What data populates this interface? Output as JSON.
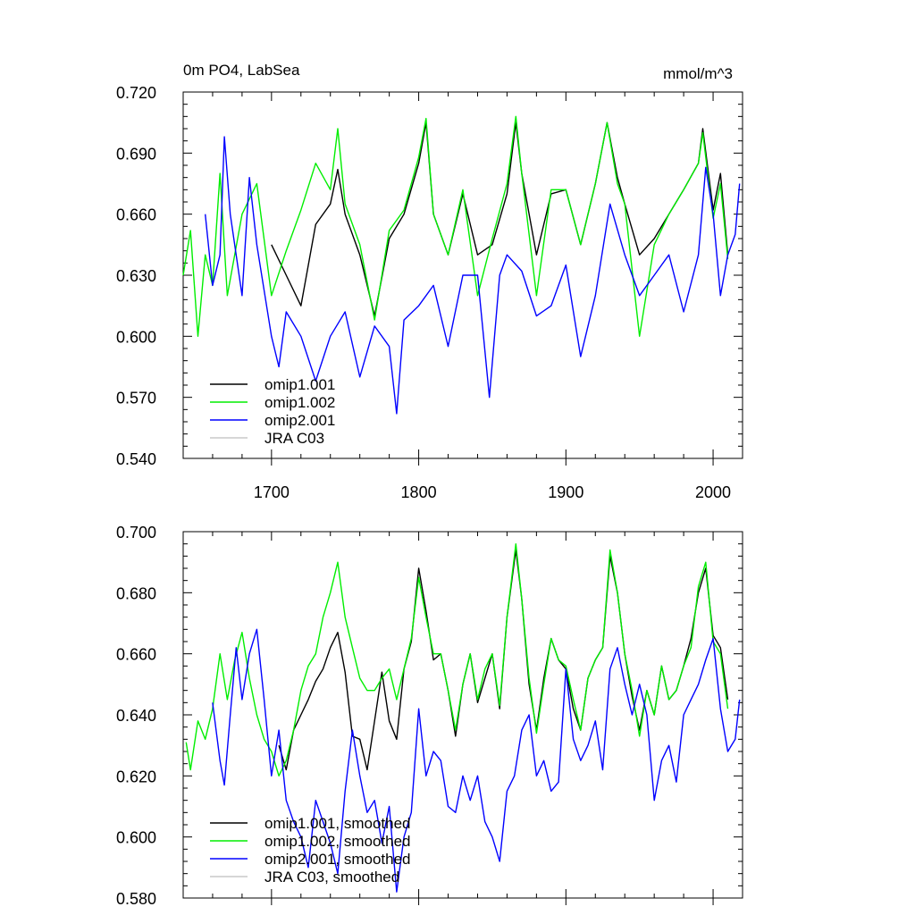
{
  "chart_data": [
    {
      "type": "line",
      "title": "0m PO4, LabSea",
      "units": "mmol/m^3",
      "xlabel": "",
      "ylabel": "",
      "xlim": [
        1640,
        2020
      ],
      "ylim": [
        0.54,
        0.72
      ],
      "x_ticks": [
        1700,
        1800,
        1900,
        2000
      ],
      "x_tick_labels": [
        "1700",
        "1800",
        "1900",
        "2000"
      ],
      "y_ticks": [
        0.54,
        0.57,
        0.6,
        0.63,
        0.66,
        0.69,
        0.72
      ],
      "y_tick_labels": [
        "0.540",
        "0.570",
        "0.600",
        "0.630",
        "0.660",
        "0.690",
        "0.720"
      ],
      "legend_position": "bottom-left",
      "series": [
        {
          "name": "omip1.001",
          "color": "#000000",
          "x": [
            1700,
            1710,
            1720,
            1730,
            1740,
            1745,
            1750,
            1760,
            1770,
            1780,
            1790,
            1800,
            1805,
            1810,
            1820,
            1830,
            1840,
            1850,
            1860,
            1866,
            1870,
            1880,
            1890,
            1900,
            1910,
            1920,
            1928,
            1935,
            1940,
            1950,
            1960,
            1970,
            1980,
            1990,
            1993,
            2000,
            2005,
            2010
          ],
          "values": [
            0.645,
            0.63,
            0.615,
            0.655,
            0.665,
            0.682,
            0.66,
            0.64,
            0.61,
            0.648,
            0.66,
            0.685,
            0.705,
            0.66,
            0.64,
            0.67,
            0.64,
            0.645,
            0.67,
            0.705,
            0.68,
            0.64,
            0.67,
            0.672,
            0.645,
            0.675,
            0.705,
            0.678,
            0.665,
            0.64,
            0.648,
            0.66,
            0.672,
            0.685,
            0.702,
            0.662,
            0.68,
            0.64
          ]
        },
        {
          "name": "omip1.002",
          "color": "#00ee00",
          "x": [
            1640,
            1645,
            1650,
            1655,
            1660,
            1665,
            1670,
            1680,
            1690,
            1700,
            1710,
            1720,
            1730,
            1740,
            1745,
            1750,
            1760,
            1770,
            1780,
            1790,
            1800,
            1805,
            1810,
            1820,
            1830,
            1840,
            1850,
            1860,
            1866,
            1870,
            1880,
            1890,
            1900,
            1910,
            1920,
            1928,
            1935,
            1940,
            1950,
            1960,
            1970,
            1980,
            1990,
            1993,
            2000,
            2005,
            2010
          ],
          "values": [
            0.63,
            0.652,
            0.6,
            0.64,
            0.625,
            0.68,
            0.62,
            0.66,
            0.675,
            0.62,
            0.642,
            0.662,
            0.685,
            0.672,
            0.702,
            0.665,
            0.645,
            0.608,
            0.652,
            0.662,
            0.688,
            0.707,
            0.66,
            0.64,
            0.672,
            0.62,
            0.648,
            0.675,
            0.708,
            0.68,
            0.62,
            0.672,
            0.672,
            0.645,
            0.675,
            0.705,
            0.675,
            0.665,
            0.6,
            0.645,
            0.66,
            0.672,
            0.685,
            0.7,
            0.658,
            0.675,
            0.638
          ]
        },
        {
          "name": "omip2.001",
          "color": "#0000ff",
          "x": [
            1655,
            1660,
            1665,
            1668,
            1672,
            1680,
            1685,
            1690,
            1700,
            1705,
            1710,
            1720,
            1730,
            1740,
            1750,
            1760,
            1770,
            1780,
            1785,
            1790,
            1800,
            1810,
            1820,
            1830,
            1840,
            1848,
            1855,
            1860,
            1870,
            1880,
            1890,
            1900,
            1910,
            1920,
            1930,
            1940,
            1950,
            1960,
            1970,
            1980,
            1990,
            1995,
            2000,
            2005,
            2010,
            2015,
            2018
          ],
          "values": [
            0.66,
            0.625,
            0.64,
            0.698,
            0.66,
            0.62,
            0.678,
            0.645,
            0.6,
            0.585,
            0.612,
            0.6,
            0.578,
            0.6,
            0.612,
            0.58,
            0.605,
            0.595,
            0.562,
            0.608,
            0.615,
            0.625,
            0.595,
            0.63,
            0.63,
            0.57,
            0.63,
            0.64,
            0.632,
            0.61,
            0.615,
            0.635,
            0.59,
            0.62,
            0.665,
            0.64,
            0.62,
            0.63,
            0.64,
            0.612,
            0.64,
            0.683,
            0.66,
            0.62,
            0.64,
            0.65,
            0.675
          ]
        },
        {
          "name": "JRA C03",
          "color": "#c8c8c8",
          "x": [],
          "values": []
        }
      ]
    },
    {
      "type": "line",
      "title": "",
      "units": "",
      "xlabel": "",
      "ylabel": "",
      "xlim": [
        1640,
        2020
      ],
      "ylim": [
        0.58,
        0.7
      ],
      "x_ticks": [
        1700,
        1800,
        1900,
        2000
      ],
      "x_tick_labels": [],
      "y_ticks": [
        0.58,
        0.6,
        0.62,
        0.64,
        0.66,
        0.68,
        0.7
      ],
      "y_tick_labels": [
        "0.580",
        "0.600",
        "0.620",
        "0.640",
        "0.660",
        "0.680",
        "0.700"
      ],
      "legend_position": "bottom-left",
      "series": [
        {
          "name": "omip1.001, smoothed",
          "color": "#000000",
          "x": [
            1705,
            1710,
            1715,
            1720,
            1725,
            1730,
            1735,
            1740,
            1745,
            1750,
            1755,
            1760,
            1765,
            1770,
            1775,
            1780,
            1785,
            1790,
            1795,
            1800,
            1805,
            1810,
            1815,
            1820,
            1825,
            1830,
            1835,
            1840,
            1845,
            1850,
            1855,
            1860,
            1866,
            1870,
            1875,
            1880,
            1885,
            1890,
            1895,
            1900,
            1905,
            1910,
            1915,
            1920,
            1925,
            1930,
            1935,
            1940,
            1945,
            1950,
            1955,
            1960,
            1965,
            1970,
            1975,
            1980,
            1985,
            1990,
            1995,
            2000,
            2005,
            2010
          ],
          "values": [
            0.63,
            0.622,
            0.635,
            0.64,
            0.645,
            0.651,
            0.655,
            0.662,
            0.667,
            0.654,
            0.633,
            0.632,
            0.622,
            0.638,
            0.654,
            0.638,
            0.632,
            0.655,
            0.664,
            0.688,
            0.674,
            0.658,
            0.66,
            0.648,
            0.633,
            0.65,
            0.66,
            0.644,
            0.652,
            0.66,
            0.642,
            0.672,
            0.694,
            0.678,
            0.65,
            0.635,
            0.652,
            0.665,
            0.658,
            0.655,
            0.642,
            0.635,
            0.652,
            0.658,
            0.662,
            0.692,
            0.68,
            0.66,
            0.646,
            0.635,
            0.648,
            0.64,
            0.656,
            0.645,
            0.648,
            0.656,
            0.665,
            0.68,
            0.688,
            0.666,
            0.662,
            0.645
          ]
        },
        {
          "name": "omip1.002, smoothed",
          "color": "#00ee00",
          "x": [
            1642,
            1645,
            1650,
            1655,
            1660,
            1665,
            1670,
            1675,
            1680,
            1685,
            1690,
            1695,
            1700,
            1705,
            1710,
            1715,
            1720,
            1725,
            1730,
            1735,
            1740,
            1745,
            1750,
            1755,
            1760,
            1765,
            1770,
            1775,
            1780,
            1785,
            1790,
            1795,
            1800,
            1805,
            1810,
            1815,
            1820,
            1825,
            1830,
            1835,
            1840,
            1845,
            1850,
            1855,
            1860,
            1866,
            1870,
            1875,
            1880,
            1885,
            1890,
            1895,
            1900,
            1905,
            1910,
            1915,
            1920,
            1925,
            1930,
            1935,
            1940,
            1945,
            1950,
            1955,
            1960,
            1965,
            1970,
            1975,
            1980,
            1985,
            1990,
            1995,
            2000,
            2005,
            2010
          ],
          "values": [
            0.631,
            0.622,
            0.638,
            0.632,
            0.642,
            0.66,
            0.645,
            0.658,
            0.667,
            0.652,
            0.64,
            0.632,
            0.628,
            0.62,
            0.625,
            0.635,
            0.648,
            0.656,
            0.66,
            0.672,
            0.68,
            0.69,
            0.672,
            0.662,
            0.652,
            0.648,
            0.648,
            0.652,
            0.655,
            0.645,
            0.655,
            0.665,
            0.685,
            0.672,
            0.66,
            0.66,
            0.648,
            0.635,
            0.65,
            0.66,
            0.645,
            0.655,
            0.66,
            0.643,
            0.672,
            0.696,
            0.678,
            0.652,
            0.634,
            0.65,
            0.665,
            0.658,
            0.656,
            0.645,
            0.635,
            0.652,
            0.658,
            0.662,
            0.694,
            0.68,
            0.66,
            0.648,
            0.633,
            0.648,
            0.64,
            0.656,
            0.645,
            0.648,
            0.656,
            0.662,
            0.682,
            0.69,
            0.664,
            0.66,
            0.642
          ]
        },
        {
          "name": "omip2.001, smoothed",
          "color": "#0000ff",
          "x": [
            1660,
            1665,
            1668,
            1672,
            1676,
            1680,
            1685,
            1690,
            1695,
            1700,
            1705,
            1710,
            1715,
            1720,
            1725,
            1730,
            1735,
            1740,
            1745,
            1750,
            1755,
            1760,
            1765,
            1770,
            1775,
            1780,
            1785,
            1790,
            1795,
            1800,
            1805,
            1810,
            1815,
            1820,
            1825,
            1830,
            1835,
            1840,
            1845,
            1850,
            1855,
            1860,
            1865,
            1870,
            1875,
            1880,
            1885,
            1890,
            1895,
            1900,
            1905,
            1910,
            1915,
            1920,
            1925,
            1930,
            1935,
            1940,
            1945,
            1950,
            1955,
            1960,
            1965,
            1970,
            1975,
            1980,
            1985,
            1990,
            1995,
            2000,
            2005,
            2010,
            2015,
            2018
          ],
          "values": [
            0.644,
            0.625,
            0.617,
            0.64,
            0.662,
            0.645,
            0.66,
            0.668,
            0.645,
            0.62,
            0.635,
            0.612,
            0.605,
            0.6,
            0.59,
            0.612,
            0.605,
            0.598,
            0.588,
            0.615,
            0.635,
            0.62,
            0.608,
            0.612,
            0.598,
            0.61,
            0.582,
            0.6,
            0.608,
            0.642,
            0.62,
            0.628,
            0.625,
            0.61,
            0.608,
            0.62,
            0.612,
            0.62,
            0.605,
            0.6,
            0.592,
            0.615,
            0.62,
            0.635,
            0.64,
            0.62,
            0.625,
            0.615,
            0.618,
            0.655,
            0.632,
            0.625,
            0.63,
            0.638,
            0.622,
            0.655,
            0.662,
            0.65,
            0.64,
            0.65,
            0.64,
            0.612,
            0.625,
            0.63,
            0.618,
            0.64,
            0.645,
            0.65,
            0.658,
            0.665,
            0.642,
            0.628,
            0.632,
            0.645
          ]
        },
        {
          "name": "JRA C03, smoothed",
          "color": "#c8c8c8",
          "x": [],
          "values": []
        }
      ]
    }
  ]
}
